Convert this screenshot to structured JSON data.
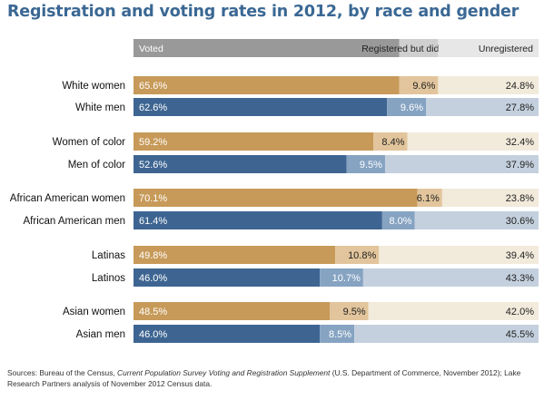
{
  "title": "Registration and voting rates in 2012, by race and gender",
  "colors": {
    "voted_women": "#c79a59",
    "registered_women": "#e2c59c",
    "unregistered_women": "#f2eadb",
    "voted_men": "#3e6592",
    "registered_men": "#86a3c2",
    "unregistered_men": "#c4d0de",
    "legend_voted": "#999999",
    "legend_registered": "#cfcfcf",
    "legend_unregistered": "#e7e7e7",
    "title": "#3b6894"
  },
  "chart_data": {
    "type": "bar",
    "stacked": true,
    "orientation": "horizontal",
    "legend_position": "top",
    "xlim": [
      0,
      100
    ],
    "categories": [
      "White women",
      "White men",
      "Women of color",
      "Men of color",
      "African American women",
      "African American men",
      "Latinas",
      "Latinos",
      "Asian women",
      "Asian men"
    ],
    "series": [
      {
        "name": "Voted",
        "values": [
          65.6,
          62.6,
          59.2,
          52.6,
          70.1,
          61.4,
          49.8,
          46.0,
          48.5,
          46.0
        ]
      },
      {
        "name": "Registered but did not vote",
        "values": [
          9.6,
          9.6,
          8.4,
          9.5,
          6.1,
          8.0,
          10.8,
          10.7,
          9.5,
          8.5
        ]
      },
      {
        "name": "Unregistered",
        "values": [
          24.8,
          27.8,
          32.4,
          37.9,
          23.8,
          30.6,
          39.4,
          43.3,
          42.0,
          45.5
        ]
      }
    ],
    "labels": [
      [
        "65.6%",
        "9.6%",
        "24.8%"
      ],
      [
        "62.6%",
        "9.6%",
        "27.8%"
      ],
      [
        "59.2%",
        "8.4%",
        "32.4%"
      ],
      [
        "52.6%",
        "9.5%",
        "37.9%"
      ],
      [
        "70.1%",
        "6.1%",
        "23.8%"
      ],
      [
        "61.4%",
        "8.0%",
        "30.6%"
      ],
      [
        "49.8%",
        "10.8%",
        "39.4%"
      ],
      [
        "46.0%",
        "10.7%",
        "43.3%"
      ],
      [
        "48.5%",
        "9.5%",
        "42.0%"
      ],
      [
        "46.0%",
        "8.5%",
        "45.5%"
      ]
    ]
  },
  "source": {
    "prefix": "Sources: Bureau of the Census, ",
    "publication": "Current Population Survey Voting and Registration Supplement",
    "suffix": " (U.S. Department of Commerce, November 2012); Lake Research Partners analysis of November 2012 Census data."
  }
}
